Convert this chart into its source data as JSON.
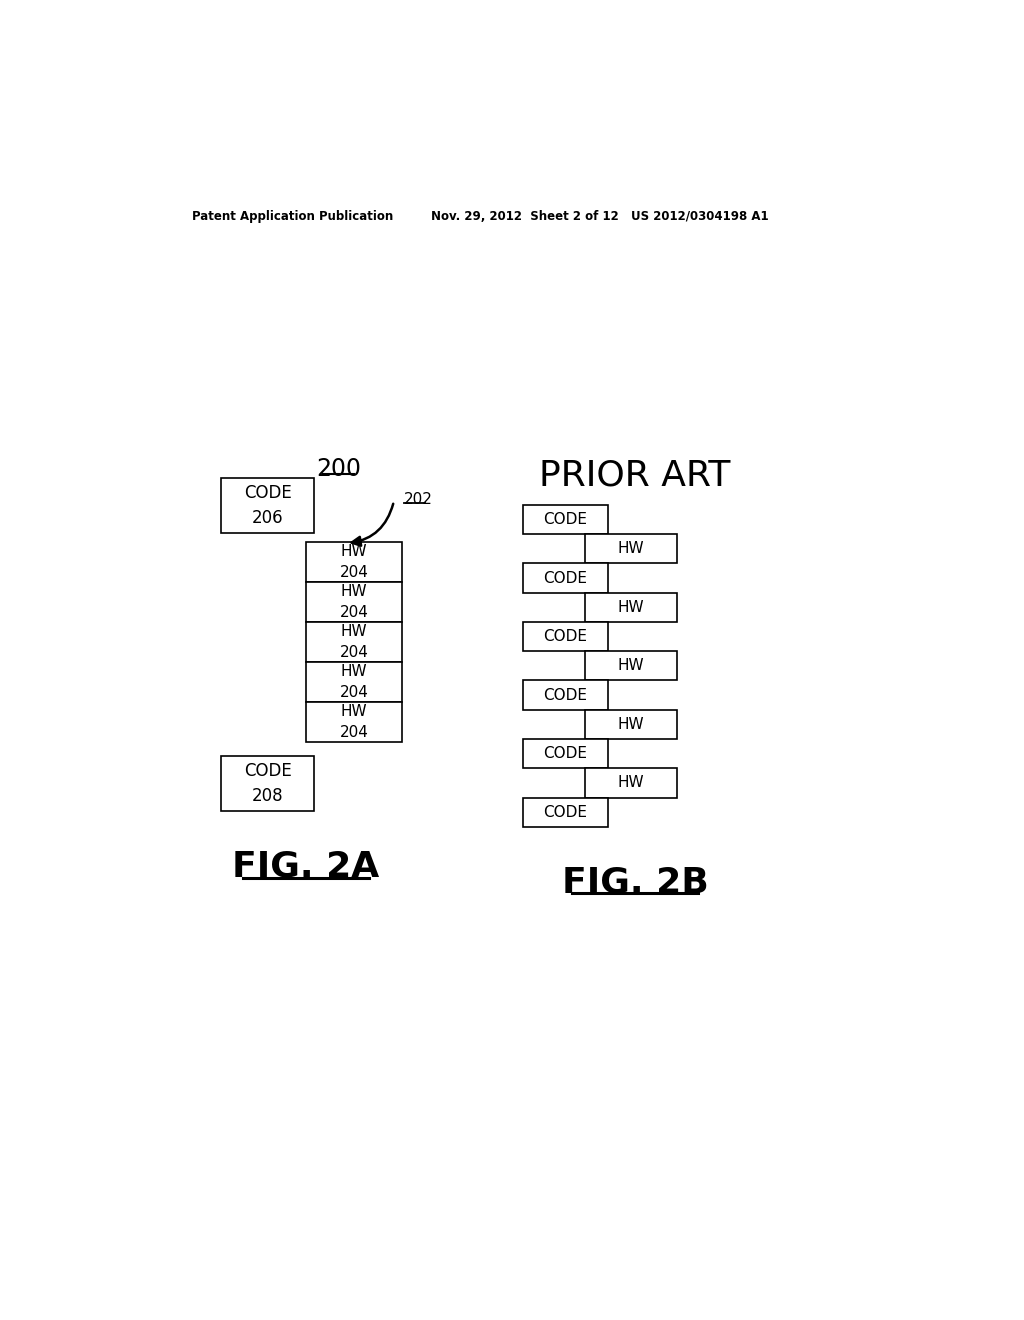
{
  "header_left": "Patent Application Publication",
  "header_mid": "Nov. 29, 2012  Sheet 2 of 12",
  "header_right": "US 2012/0304198 A1",
  "fig2a_label": "200",
  "fig2a_arrow_label": "202",
  "fig2a_hw_count": 5,
  "fig2a_caption": "FIG. 2A",
  "fig2b_title": "PRIOR ART",
  "fig2b_caption": "FIG. 2B",
  "fig2b_code_count": 6,
  "fig2b_hw_count": 5,
  "bg_color": "#ffffff",
  "box_edge_color": "#000000",
  "text_color": "#000000"
}
